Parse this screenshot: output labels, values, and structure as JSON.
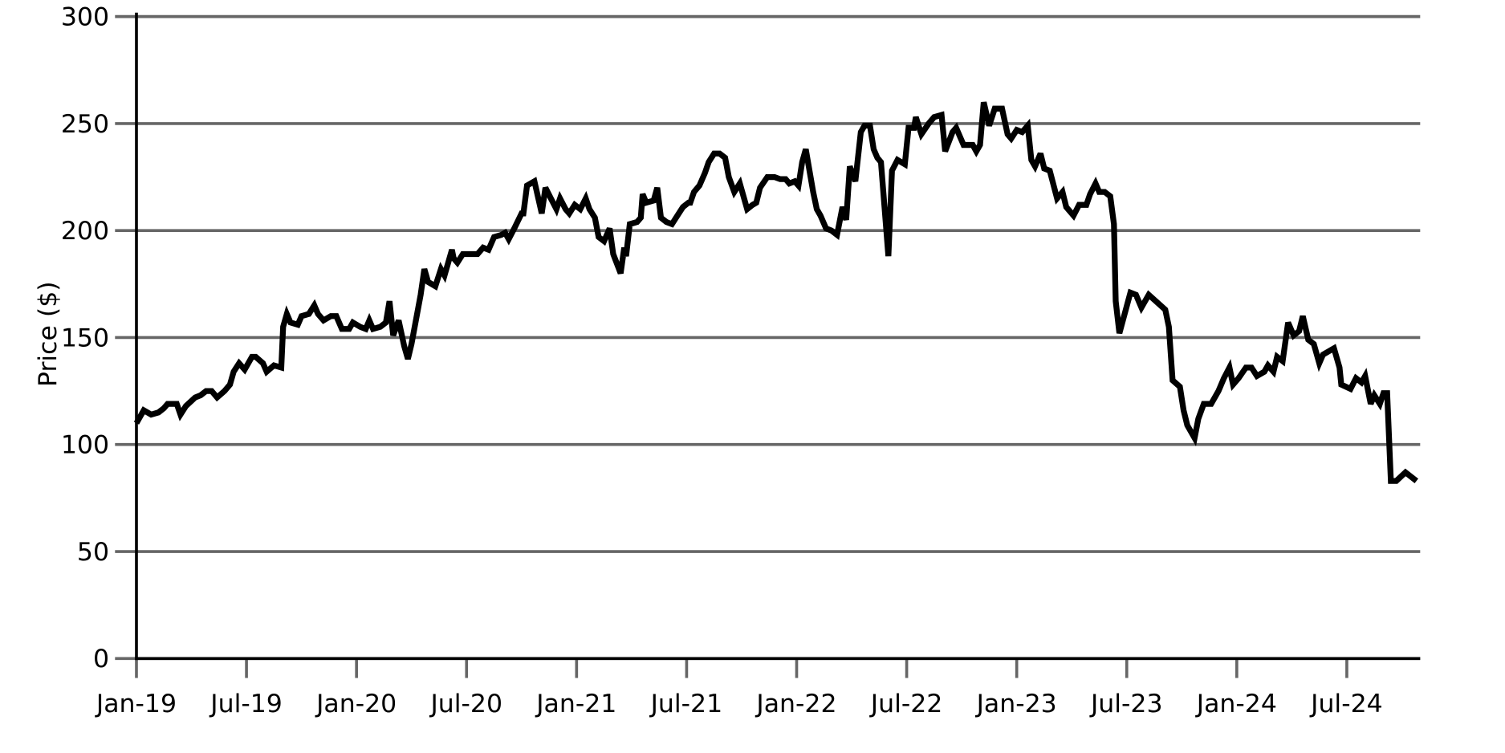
{
  "chart_data": {
    "type": "line",
    "y_label": "Price ($)",
    "xlim": [
      0,
      70
    ],
    "xticks": [
      {
        "value": 0,
        "label": "Jan-19"
      },
      {
        "value": 6,
        "label": "Jul-19"
      },
      {
        "value": 12,
        "label": "Jan-20"
      },
      {
        "value": 18,
        "label": "Jul-20"
      },
      {
        "value": 24,
        "label": "Jan-21"
      },
      {
        "value": 30,
        "label": "Jul-21"
      },
      {
        "value": 36,
        "label": "Jan-22"
      },
      {
        "value": 42,
        "label": "Jul-22"
      },
      {
        "value": 48,
        "label": "Jan-23"
      },
      {
        "value": 54,
        "label": "Jul-23"
      },
      {
        "value": 60,
        "label": "Jan-24"
      },
      {
        "value": 66,
        "label": "Jul-24"
      }
    ],
    "ylim": [
      0,
      300
    ],
    "yticks": [
      0,
      50,
      100,
      150,
      200,
      250,
      300
    ],
    "grid": true,
    "series": [
      {
        "color": "#000000",
        "x": [
          0,
          0.4,
          0.8,
          1.2,
          1.5,
          1.7,
          2.2,
          2.4,
          2.7,
          3.2,
          3.5,
          3.8,
          4.1,
          4.4,
          4.8,
          5.1,
          5.3,
          5.6,
          5.9,
          6.3,
          6.5,
          6.9,
          7.1,
          7.5,
          7.9,
          8.0,
          8.2,
          8.4,
          8.8,
          9.0,
          9.4,
          9.7,
          9.9,
          10.2,
          10.6,
          10.9,
          11.2,
          11.6,
          11.8,
          12.2,
          12.5,
          12.7,
          12.9,
          13.3,
          13.6,
          13.8,
          14.0,
          14.3,
          14.6,
          14.8,
          15.0,
          15.5,
          15.7,
          15.9,
          16.3,
          16.6,
          16.8,
          17.2,
          17.3,
          17.5,
          17.8,
          18.6,
          18.9,
          19.2,
          19.5,
          19.9,
          20.1,
          20.3,
          20.6,
          21.0,
          21.1,
          21.3,
          21.7,
          22.1,
          22.3,
          22.6,
          22.9,
          23.1,
          23.4,
          23.6,
          23.9,
          24.2,
          24.5,
          24.7,
          25.0,
          25.2,
          25.5,
          25.8,
          26.0,
          26.4,
          26.6,
          26.7,
          26.9,
          27.3,
          27.5,
          27.6,
          27.8,
          28.2,
          28.4,
          28.6,
          28.9,
          29.2,
          29.5,
          29.8,
          30.1,
          30.2,
          30.4,
          30.7,
          31.0,
          31.2,
          31.5,
          31.8,
          32.1,
          32.3,
          32.6,
          32.9,
          33.3,
          33.6,
          33.8,
          34.0,
          34.4,
          34.8,
          35.1,
          35.4,
          35.6,
          35.9,
          36.1,
          36.3,
          36.5,
          36.9,
          37.1,
          37.3,
          37.6,
          37.9,
          38.2,
          38.5,
          38.7,
          38.9,
          39.2,
          39.5,
          39.7,
          40.0,
          40.2,
          40.4,
          40.6,
          41.0,
          41.2,
          41.5,
          41.9,
          42.1,
          42.4,
          42.5,
          42.8,
          43.2,
          43.5,
          43.9,
          44.1,
          44.5,
          44.7,
          45.1,
          45.6,
          45.8,
          46.0,
          46.2,
          46.5,
          46.8,
          47.2,
          47.5,
          47.7,
          48.0,
          48.3,
          48.6,
          48.8,
          49.0,
          49.3,
          49.5,
          49.8,
          50.2,
          50.5,
          50.7,
          51.1,
          51.4,
          51.8,
          52.0,
          52.3,
          52.5,
          52.8,
          53.1,
          53.3,
          53.4,
          53.6,
          54.2,
          54.5,
          54.8,
          55.2,
          56.1,
          56.3,
          56.5,
          56.9,
          57.1,
          57.3,
          57.7,
          57.9,
          58.2,
          58.6,
          59.0,
          59.3,
          59.6,
          59.8,
          60.1,
          60.5,
          60.8,
          61.1,
          61.5,
          61.7,
          62.0,
          62.2,
          62.5,
          62.8,
          63.1,
          63.4,
          63.6,
          63.9,
          64.2,
          64.5,
          64.7,
          65.1,
          65.3,
          65.6,
          65.7,
          66.2,
          66.5,
          66.8,
          67.0,
          67.3,
          67.5,
          67.8,
          68.0,
          68.2,
          68.4,
          68.7,
          69.2,
          69.8
        ],
        "values": [
          110,
          116,
          114,
          115,
          117,
          119,
          119,
          114,
          118,
          122,
          123,
          125,
          125,
          122,
          125,
          128,
          134,
          138,
          135,
          141,
          141,
          138,
          134,
          137,
          136,
          155,
          161,
          157,
          156,
          160,
          161,
          165,
          161,
          158,
          160,
          160,
          154,
          154,
          157,
          155,
          154,
          158,
          154,
          155,
          157,
          167,
          151,
          158,
          146,
          140,
          147,
          170,
          182,
          176,
          174,
          182,
          179,
          191,
          187,
          185,
          189,
          189,
          192,
          191,
          197,
          198,
          199,
          196,
          201,
          208,
          208,
          221,
          223,
          208,
          220,
          215,
          210,
          215,
          210,
          208,
          212,
          210,
          215,
          210,
          206,
          197,
          195,
          201,
          189,
          180,
          192,
          188,
          203,
          204,
          206,
          217,
          213,
          214,
          220,
          206,
          204,
          203,
          207,
          211,
          213,
          213,
          218,
          221,
          227,
          232,
          236,
          236,
          234,
          225,
          218,
          222,
          210,
          212,
          213,
          220,
          225,
          225,
          224,
          224,
          222,
          223,
          221,
          232,
          238,
          218,
          210,
          207,
          201,
          200,
          198,
          211,
          205,
          230,
          223,
          246,
          249,
          249,
          238,
          234,
          232,
          188,
          228,
          233,
          231,
          248,
          248,
          253,
          245,
          250,
          253,
          254,
          237,
          246,
          248,
          240,
          240,
          237,
          240,
          260,
          249,
          257,
          257,
          245,
          243,
          247,
          246,
          249,
          233,
          230,
          236,
          229,
          228,
          215,
          218,
          211,
          207,
          212,
          212,
          217,
          222,
          218,
          218,
          216,
          203,
          167,
          152,
          171,
          170,
          164,
          170,
          163,
          155,
          130,
          127,
          116,
          109,
          103,
          112,
          119,
          119,
          125,
          131,
          136,
          128,
          131,
          136,
          136,
          132,
          134,
          137,
          134,
          141,
          139,
          157,
          151,
          153,
          160,
          149,
          147,
          138,
          142,
          144,
          145,
          136,
          128,
          126,
          131,
          129,
          132,
          119,
          123,
          119,
          124,
          124,
          83,
          83,
          87,
          83
        ]
      }
    ]
  }
}
